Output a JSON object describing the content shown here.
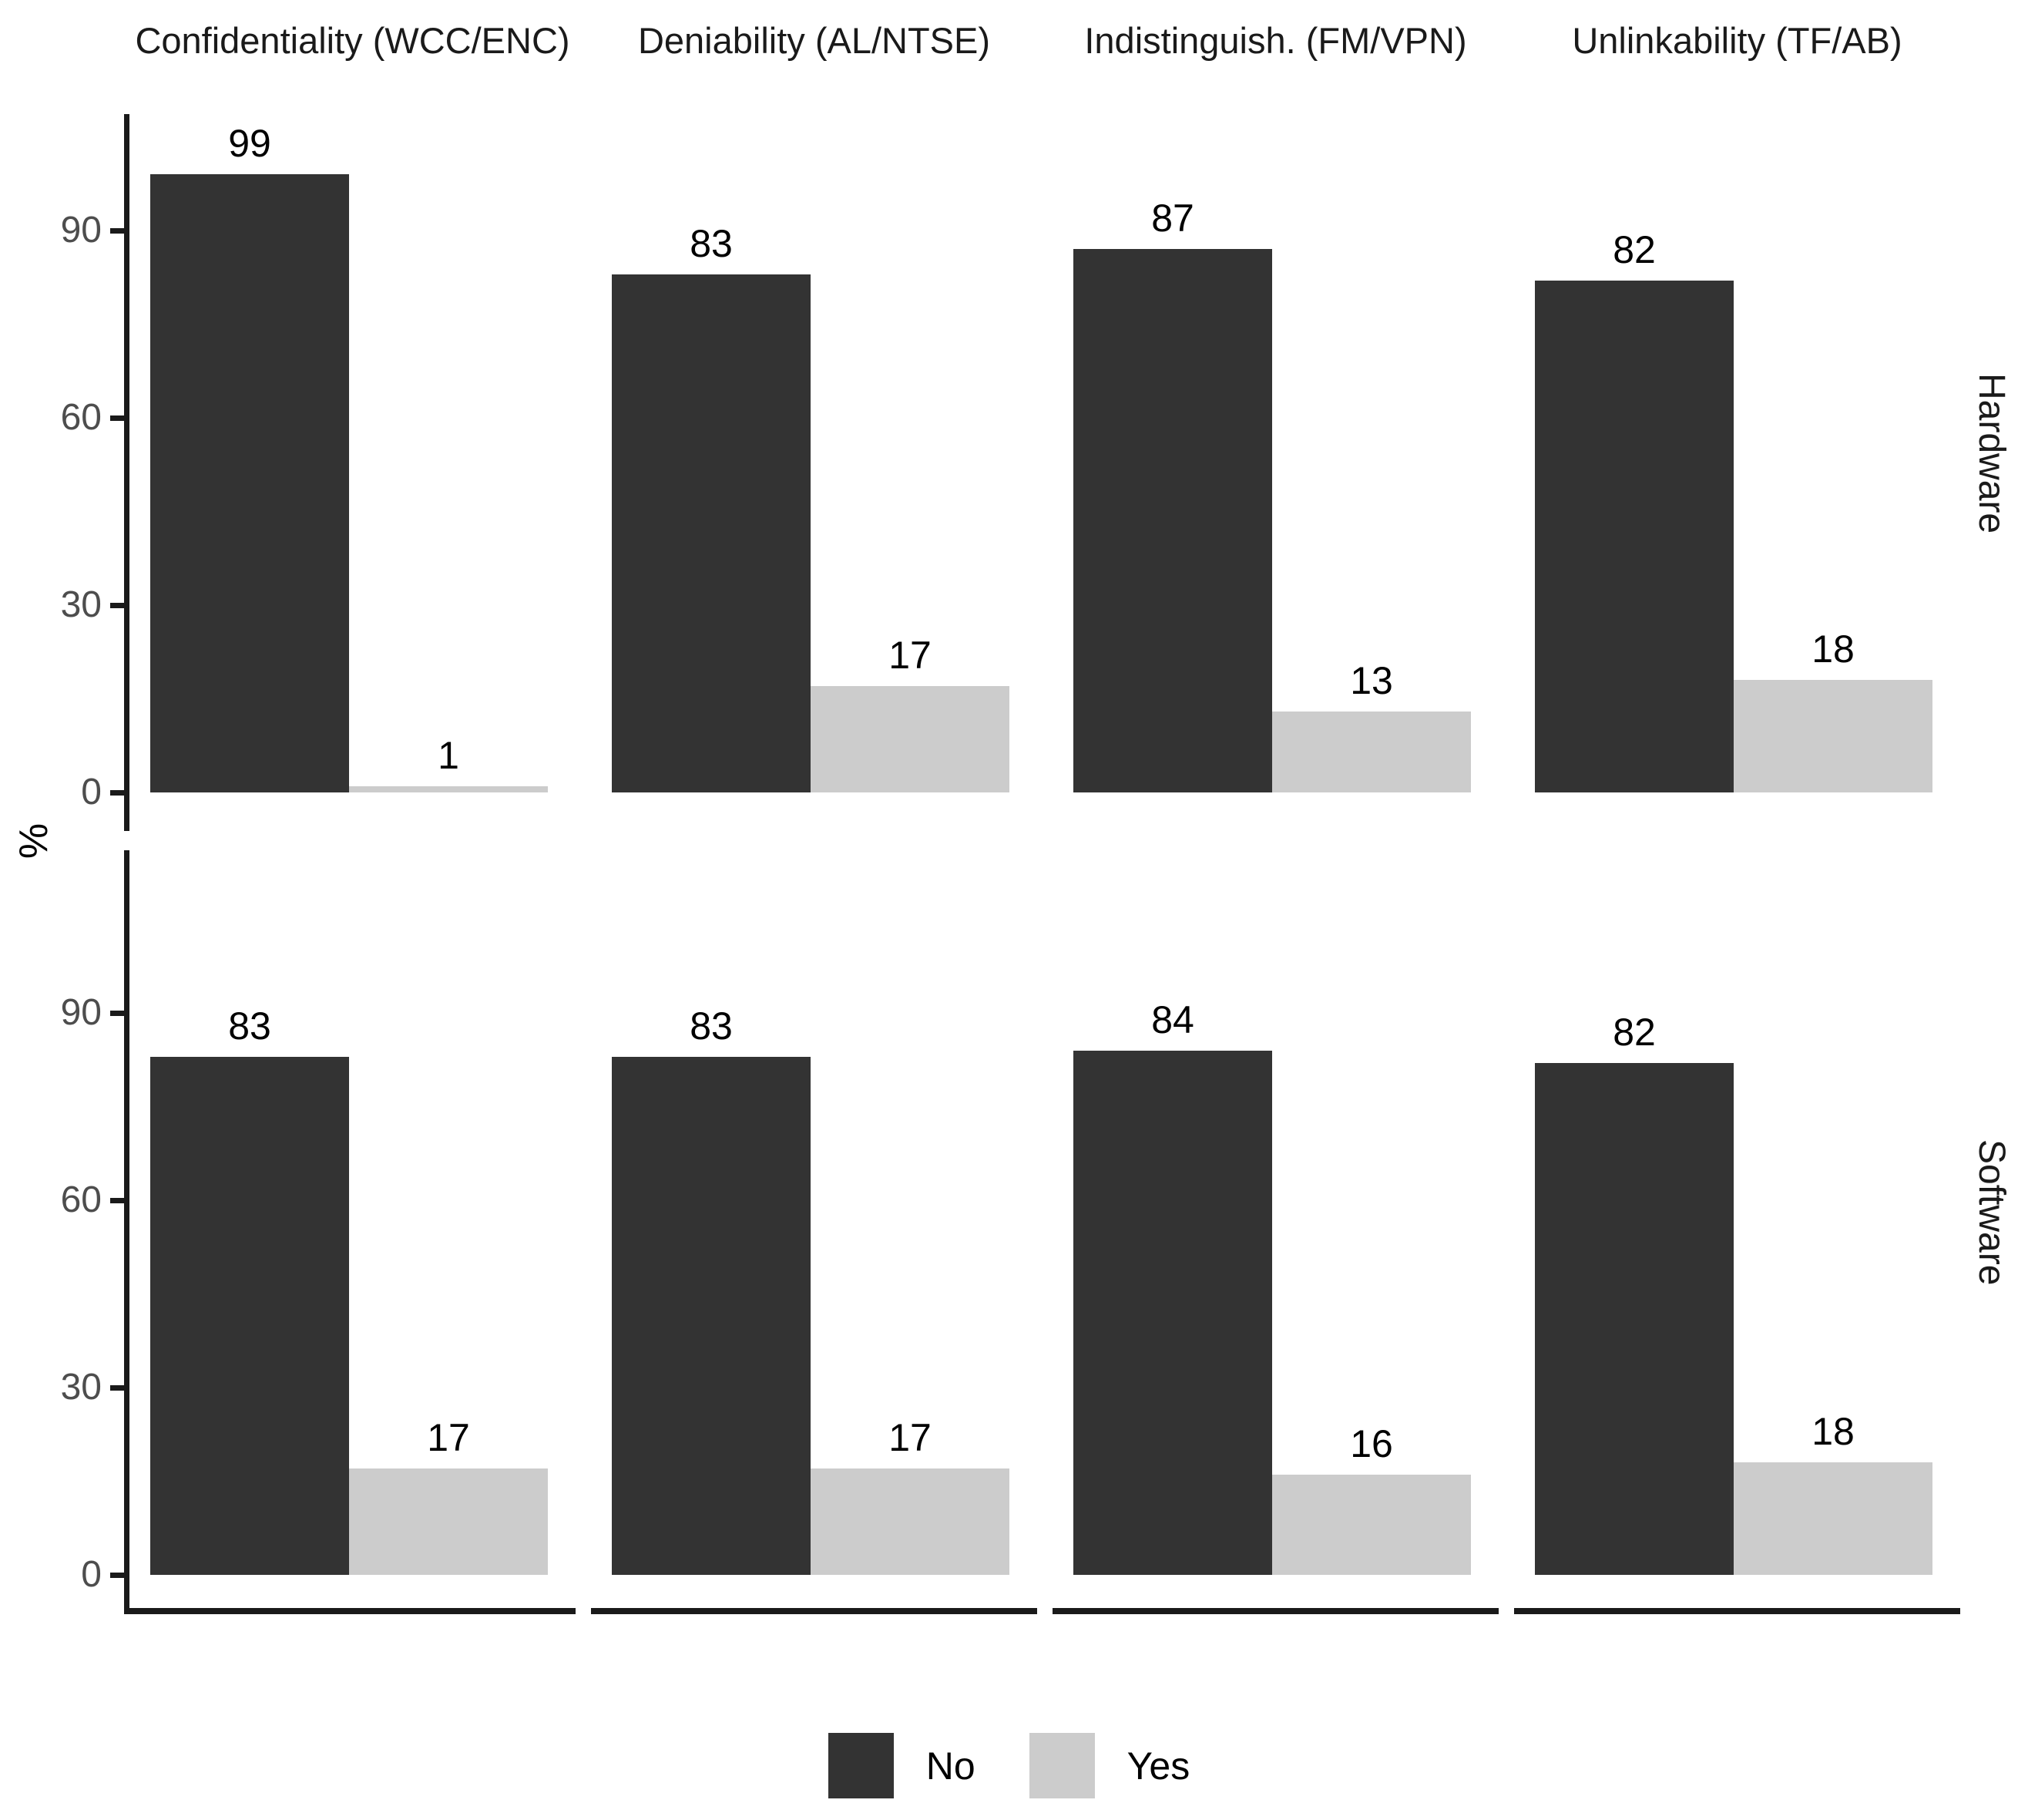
{
  "chart_data": {
    "type": "bar",
    "facet_columns": [
      "Confidentiality (WCC/ENC)",
      "Deniability (AL/NTSE)",
      "Indistinguish. (FM/VPN)",
      "Unlinkability (TF/AB)"
    ],
    "facet_rows": [
      {
        "label": "Hardware",
        "values": [
          [
            99,
            1
          ],
          [
            83,
            17
          ],
          [
            87,
            13
          ],
          [
            82,
            18
          ]
        ]
      },
      {
        "label": "Software",
        "values": [
          [
            83,
            17
          ],
          [
            83,
            17
          ],
          [
            84,
            16
          ],
          [
            82,
            18
          ]
        ]
      }
    ],
    "series": [
      {
        "name": "No",
        "color": "#333333"
      },
      {
        "name": "Yes",
        "color": "#cccccc"
      }
    ],
    "ylabel": "%",
    "yticks": [
      0,
      30,
      60,
      90
    ],
    "ylim": [
      0,
      108
    ],
    "grid": false,
    "bar_value_labels": true,
    "legend_position": "bottom",
    "axis_text_color": "#4d4d4d",
    "axis_line_color": "#1a1a1a"
  }
}
